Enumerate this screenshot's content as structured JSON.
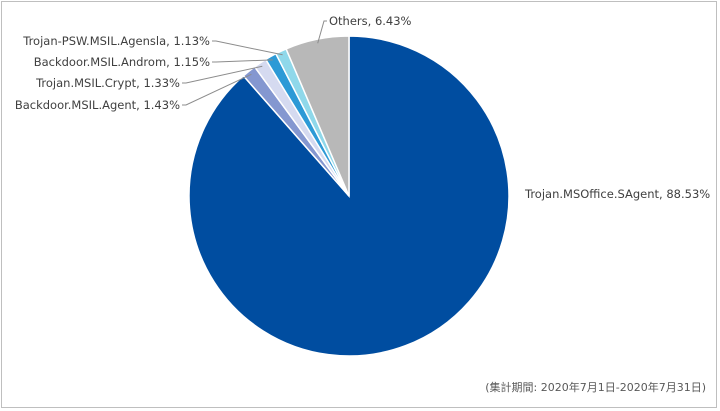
{
  "chart_data": {
    "type": "pie",
    "start_angle_deg": 0,
    "direction": "clockwise",
    "slices": [
      {
        "label": "Trojan.MSOffice.SAgent",
        "value": 88.53,
        "display": "Trojan.MSOffice.SAgent, 88.53%",
        "color": "#004da0"
      },
      {
        "label": "Backdoor.MSIL.Agent",
        "value": 1.43,
        "display": "Backdoor.MSIL.Agent, 1.43%",
        "color": "#8497d0"
      },
      {
        "label": "Trojan.MSIL.Crypt",
        "value": 1.33,
        "display": "Trojan.MSIL.Crypt, 1.33%",
        "color": "#d5daf0"
      },
      {
        "label": "Backdoor.MSIL.Androm",
        "value": 1.15,
        "display": "Backdoor.MSIL.Androm, 1.15%",
        "color": "#2d9ad6"
      },
      {
        "label": "Trojan-PSW.MSIL.Agensla",
        "value": 1.13,
        "display": "Trojan-PSW.MSIL.Agensla, 1.13%",
        "color": "#8fd8ea"
      },
      {
        "label": "Others",
        "value": 6.43,
        "display": "Others, 6.43%",
        "color": "#b8b8b8"
      }
    ],
    "leader_line_color": "#8c8c8c"
  },
  "footer": {
    "period": "(集計期間: 2020年7月1日-2020年7月31日)"
  }
}
